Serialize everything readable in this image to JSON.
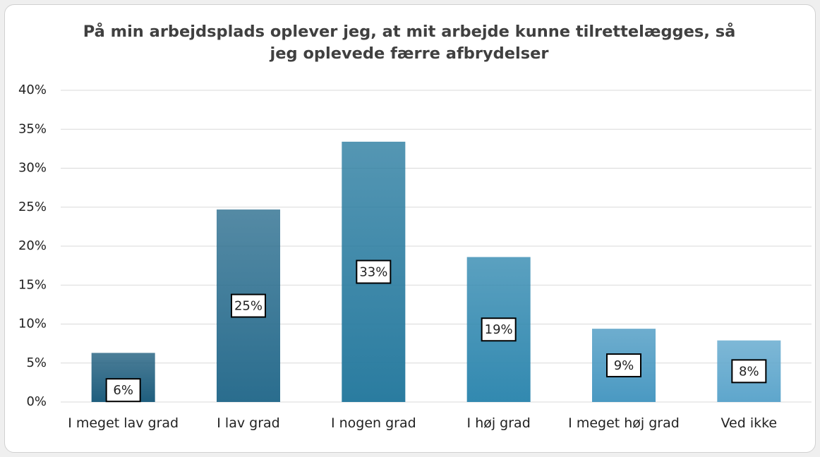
{
  "chart_data": {
    "type": "bar",
    "title": "På min arbejdsplads oplever jeg, at mit arbejde kunne tilrettelægges, så jeg oplevede færre afbrydelser",
    "categories": [
      "I meget lav grad",
      "I lav grad",
      "I nogen grad",
      "I høj grad",
      "I meget høj grad",
      "Ved ikke"
    ],
    "values": [
      6.3,
      24.7,
      33.4,
      18.6,
      9.4,
      7.9
    ],
    "value_labels": [
      "6%",
      "25%",
      "33%",
      "19%",
      "9%",
      "8%"
    ],
    "colors": [
      "#1f5e7e",
      "#2a6d8e",
      "#2a7ca0",
      "#3289b0",
      "#4a99c2",
      "#5ea6cc"
    ],
    "ylim": [
      0,
      40
    ],
    "yticks": [
      {
        "value": 0,
        "label": "0%"
      },
      {
        "value": 5,
        "label": "5%"
      },
      {
        "value": 10,
        "label": "10%"
      },
      {
        "value": 15,
        "label": "15%"
      },
      {
        "value": 20,
        "label": "20%"
      },
      {
        "value": 25,
        "label": "25%"
      },
      {
        "value": 30,
        "label": "30%"
      },
      {
        "value": 35,
        "label": "35%"
      },
      {
        "value": 40,
        "label": "40%"
      }
    ],
    "grid": true
  }
}
